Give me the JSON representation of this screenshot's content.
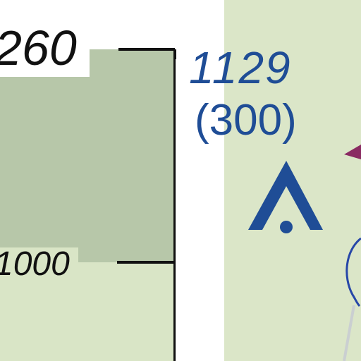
{
  "map": {
    "labels": {
      "top_contour": "260",
      "mid_contour": "1000",
      "peak_elevation": "1129",
      "peak_secondary": "(300)"
    },
    "colors": {
      "shade_dark": "#b7c7a9",
      "shade_light": "#d9e5c6",
      "right_area": "#dbe6c8",
      "label_text": "#111111",
      "peak_text": "#1f4d96",
      "peak_symbol": "#1f4d96",
      "arrow": "#8a2b62",
      "river_line": "#2747a8",
      "boundary_line": "#111111"
    },
    "icons": {
      "peak_symbol": "summit-triangle-icon",
      "arrow": "arrow-marker-icon",
      "river": "river-line-icon"
    }
  }
}
